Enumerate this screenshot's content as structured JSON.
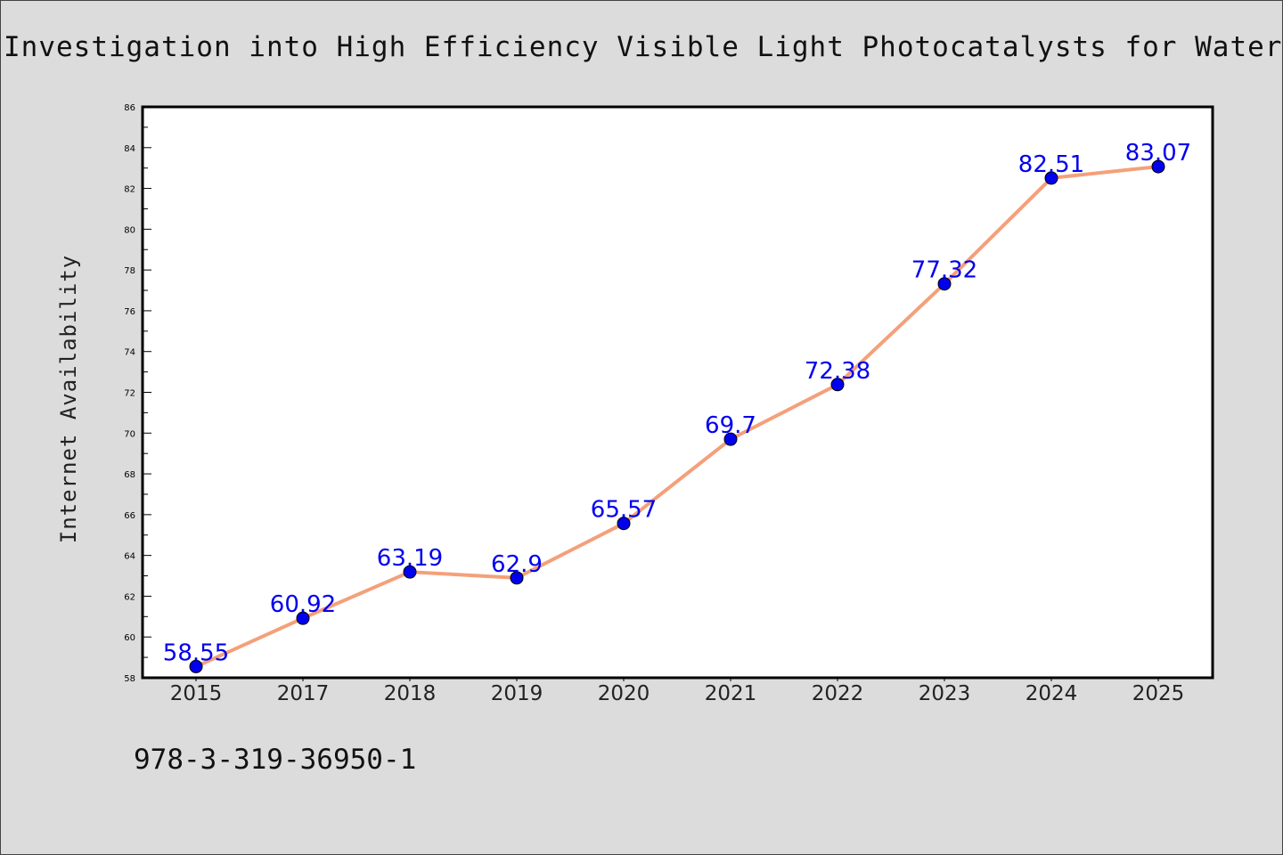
{
  "chart_data": {
    "type": "line",
    "title": "Investigation into High Efficiency Visible Light Photocatalysts for Water Reduct",
    "xlabel": "",
    "ylabel": "Internet Availability",
    "categories": [
      "2015",
      "2017",
      "2018",
      "2019",
      "2020",
      "2021",
      "2022",
      "2023",
      "2024",
      "2025"
    ],
    "series": [
      {
        "values": [
          58.55,
          60.92,
          63.19,
          62.9,
          65.57,
          69.7,
          72.38,
          77.32,
          82.51,
          83.07
        ],
        "labels": [
          "58.55",
          "60.92",
          "63.19",
          "62.9",
          "65.57",
          "69.7",
          "72.38",
          "77.32",
          "82.51",
          "83.07"
        ],
        "line_color": "#f4a07a",
        "marker_color": "#0000ee"
      }
    ],
    "ylim": [
      58,
      86
    ],
    "yticks": [
      "58",
      "60",
      "62",
      "64",
      "66",
      "68",
      "70",
      "72",
      "74",
      "76",
      "78",
      "80",
      "82",
      "84",
      "86"
    ],
    "grid": false,
    "legend": "none"
  },
  "footer_note": "978-3-319-36950-1",
  "colors": {
    "background": "#dcdcdc",
    "plot_area": "#ffffff"
  }
}
